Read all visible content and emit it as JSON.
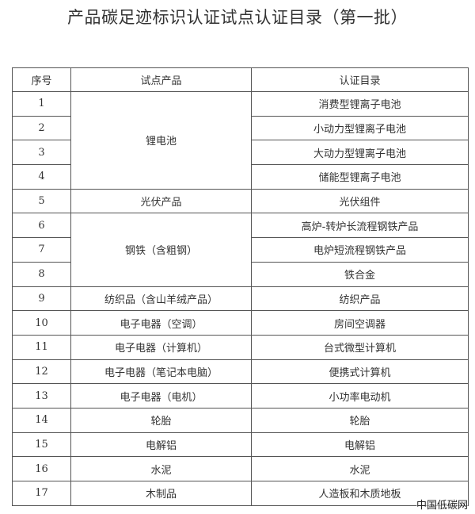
{
  "title": "产品碳足迹标识认证试点认证目录（第一批）",
  "headers": [
    "序号",
    "试点产品",
    "认证目录"
  ],
  "rows": [
    {
      "no": "1",
      "product": "锂电池",
      "catalog": "消费型锂离子电池"
    },
    {
      "no": "2",
      "catalog": "小动力型锂离子电池"
    },
    {
      "no": "3",
      "catalog": "大动力型锂离子电池"
    },
    {
      "no": "4",
      "catalog": "储能型锂离子电池"
    },
    {
      "no": "5",
      "product": "光伏产品",
      "catalog": "光伏组件"
    },
    {
      "no": "6",
      "product": "钢铁（含粗钢）",
      "catalog": "高炉-转炉长流程钢铁产品"
    },
    {
      "no": "7",
      "catalog": "电炉短流程钢铁产品"
    },
    {
      "no": "8",
      "catalog": "铁合金"
    },
    {
      "no": "9",
      "product": "纺织品（含山羊绒产品）",
      "catalog": "纺织产品"
    },
    {
      "no": "10",
      "product": "电子电器（空调）",
      "catalog": "房间空调器"
    },
    {
      "no": "11",
      "product": "电子电器（计算机）",
      "catalog": "台式微型计算机"
    },
    {
      "no": "12",
      "product": "电子电器（笔记本电脑）",
      "catalog": "便携式计算机"
    },
    {
      "no": "13",
      "product": "电子电器（电机）",
      "catalog": "小功率电动机"
    },
    {
      "no": "14",
      "product": "轮胎",
      "catalog": "轮胎"
    },
    {
      "no": "15",
      "product": "电解铝",
      "catalog": "电解铝"
    },
    {
      "no": "16",
      "product": "水泥",
      "catalog": "水泥"
    },
    {
      "no": "17",
      "product": "木制品",
      "catalog": "人造板和木质地板"
    }
  ],
  "watermark": "中国低碳网"
}
